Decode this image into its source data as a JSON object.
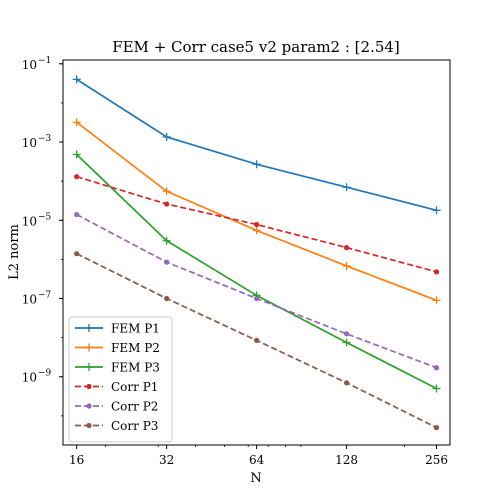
{
  "chart_data": {
    "type": "line",
    "title": "FEM + Corr case5 v2 param2 : [2.54]",
    "xlabel": "N",
    "ylabel": "L2 norm",
    "xscale": "log",
    "yscale": "log",
    "xlim": [
      14.4,
      284
    ],
    "ylim": [
      1.8e-11,
      0.125
    ],
    "x": [
      16,
      32,
      64,
      128,
      256
    ],
    "x_ticks": [
      16,
      32,
      64,
      128,
      256
    ],
    "x_tick_labels": [
      "16",
      "32",
      "64",
      "128",
      "256"
    ],
    "y_ticks": [
      0.1,
      0.001,
      1e-05,
      1e-07,
      1e-09
    ],
    "y_tick_labels": [
      "10",
      "10",
      "10",
      "10",
      "10"
    ],
    "y_tick_exponents": [
      "−1",
      "−3",
      "−5",
      "−7",
      "−9"
    ],
    "grid": false,
    "legend_position": "lower-left",
    "series": [
      {
        "name": "FEM P1",
        "color": "#1f77b4",
        "linestyle": "solid",
        "marker": "plus",
        "values": [
          0.04,
          0.00135,
          0.00027,
          7e-05,
          1.8e-05
        ]
      },
      {
        "name": "FEM P2",
        "color": "#ff7f0e",
        "linestyle": "solid",
        "marker": "plus",
        "values": [
          0.0032,
          5.5e-05,
          5.5e-06,
          6.8e-07,
          9e-08
        ]
      },
      {
        "name": "FEM P3",
        "color": "#2ca02c",
        "linestyle": "solid",
        "marker": "plus",
        "values": [
          0.00048,
          3e-06,
          1.2e-07,
          7.5e-09,
          5e-10
        ]
      },
      {
        "name": "Corr P1",
        "color": "#d62728",
        "linestyle": "dashed",
        "marker": "dot",
        "values": [
          0.00013,
          2.6e-05,
          7.8e-06,
          2e-06,
          4.8e-07
        ]
      },
      {
        "name": "Corr P2",
        "color": "#9467bd",
        "linestyle": "dashed",
        "marker": "dot",
        "values": [
          1.4e-05,
          8.5e-07,
          1e-07,
          1.25e-08,
          1.7e-09
        ]
      },
      {
        "name": "Corr P3",
        "color": "#8c564b",
        "linestyle": "dashed",
        "marker": "dot",
        "values": [
          1.4e-06,
          1e-07,
          8.5e-09,
          7e-10,
          5e-11
        ]
      }
    ]
  }
}
